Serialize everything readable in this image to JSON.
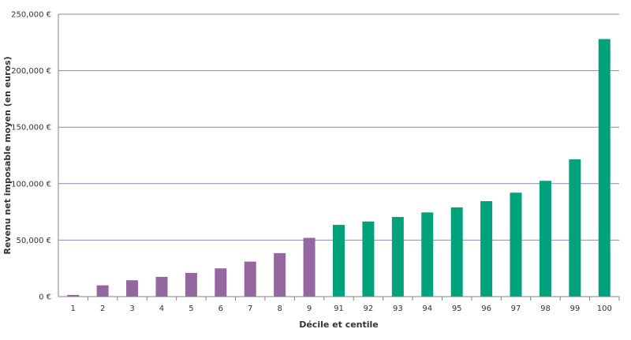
{
  "chart_data": {
    "type": "bar",
    "title": "",
    "xlabel": "Décile et centile",
    "ylabel": "Revenu net imposable moyen (en euros)",
    "ylim": [
      0,
      250000
    ],
    "y_ticks": [
      0,
      50000,
      100000,
      150000,
      200000,
      250000
    ],
    "y_tick_labels": [
      "0 €",
      "50,000 €",
      "100,000 €",
      "150,000 €",
      "200,000 €",
      "250,000 €"
    ],
    "grid": true,
    "legend": "none",
    "categories": [
      "1",
      "2",
      "3",
      "4",
      "5",
      "6",
      "7",
      "8",
      "9",
      "91",
      "92",
      "93",
      "94",
      "95",
      "96",
      "97",
      "98",
      "99",
      "100"
    ],
    "values": [
      1500,
      10000,
      14500,
      17500,
      21000,
      25000,
      31000,
      38500,
      52000,
      63500,
      66500,
      70500,
      74500,
      79000,
      84500,
      92000,
      102500,
      121500,
      228000
    ],
    "group": [
      "decile",
      "decile",
      "decile",
      "decile",
      "decile",
      "decile",
      "decile",
      "decile",
      "decile",
      "centile",
      "centile",
      "centile",
      "centile",
      "centile",
      "centile",
      "centile",
      "centile",
      "centile",
      "centile"
    ],
    "colors": {
      "decile": "#9467a0",
      "centile": "#00a27c",
      "grid": "#8c8cb4",
      "axis": "#808080"
    }
  }
}
